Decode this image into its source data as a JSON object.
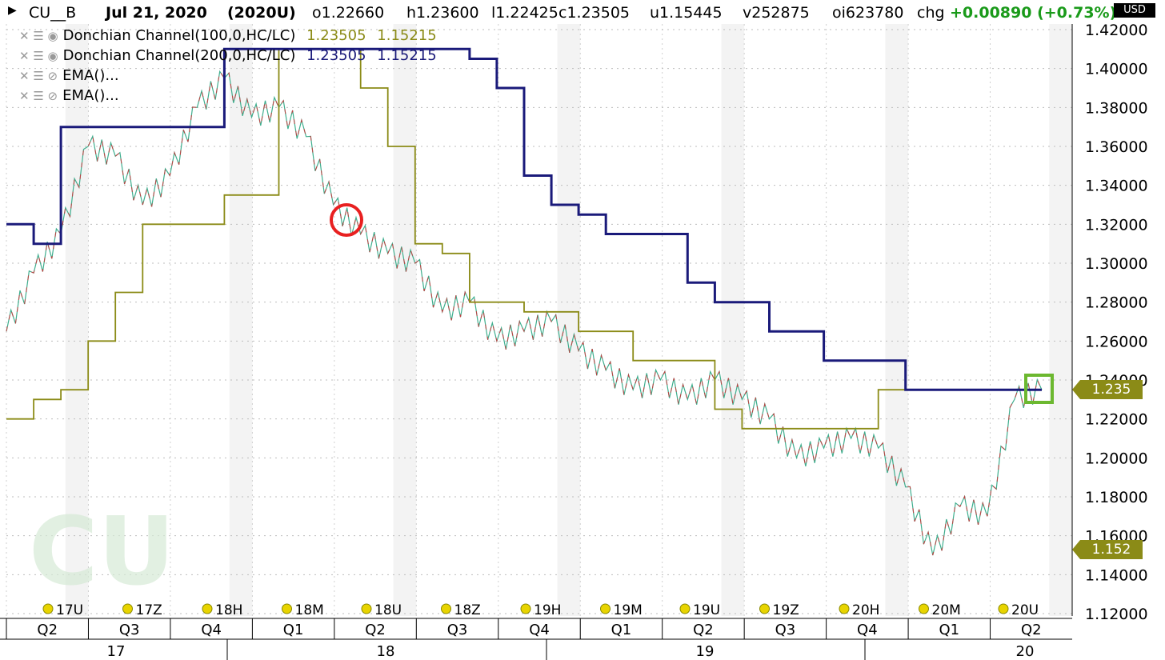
{
  "header": {
    "symbol": "CU__B",
    "date": "Jul 21, 2020",
    "contract": "(2020U)",
    "open": "o1.22660",
    "high": "h1.23600",
    "low": "l1.22425",
    "close": "c1.23505",
    "u": "u1.15445",
    "volume": "v252875",
    "open_interest": "oi623780",
    "chg_label": "chg",
    "chg_value": "+0.00890 (+0.73%)",
    "currency": "USD"
  },
  "legend": [
    {
      "name": "Donchian Channel(100,0,HC/LC)",
      "upper": "1.23505",
      "lower": "1.15215",
      "color": "#8b8b17"
    },
    {
      "name": "Donchian Channel(200,0,HC/LC)",
      "upper": "1.23505",
      "lower": "1.15215",
      "color": "#1a1a7a"
    },
    {
      "name": "EMA()...",
      "upper": "",
      "lower": "",
      "color": ""
    },
    {
      "name": "EMA()...",
      "upper": "",
      "lower": "",
      "color": ""
    }
  ],
  "price_tags": {
    "upper": "1.235",
    "lower": "1.152"
  },
  "watermark": "CU",
  "chart_data": {
    "type": "line",
    "ylim": [
      1.12,
      1.42
    ],
    "y_ticks": [
      "1.42000",
      "1.40000",
      "1.38000",
      "1.36000",
      "1.34000",
      "1.32000",
      "1.30000",
      "1.28000",
      "1.26000",
      "1.24000",
      "1.22000",
      "1.20000",
      "1.18000",
      "1.16000",
      "1.14000",
      "1.12000"
    ],
    "contract_markers": [
      "17U",
      "17Z",
      "18H",
      "18M",
      "18U",
      "18Z",
      "19H",
      "19M",
      "19U",
      "19Z",
      "20H",
      "20M",
      "20U"
    ],
    "quarters": [
      "Q2",
      "Q3",
      "Q4",
      "Q1",
      "Q2",
      "Q3",
      "Q4",
      "Q1",
      "Q2",
      "Q3",
      "Q4",
      "Q1",
      "Q2"
    ],
    "years": [
      "17",
      "18",
      "19",
      "20"
    ],
    "x": [
      "2017-05",
      "2017-06",
      "2017-07",
      "2017-08",
      "2017-09",
      "2017-10",
      "2017-11",
      "2017-12",
      "2018-01",
      "2018-02",
      "2018-03",
      "2018-04",
      "2018-05",
      "2018-06",
      "2018-07",
      "2018-08",
      "2018-09",
      "2018-10",
      "2018-11",
      "2018-12",
      "2019-01",
      "2019-02",
      "2019-03",
      "2019-04",
      "2019-05",
      "2019-06",
      "2019-07",
      "2019-08",
      "2019-09",
      "2019-10",
      "2019-11",
      "2019-12",
      "2020-01",
      "2020-02",
      "2020-03",
      "2020-04",
      "2020-05",
      "2020-06",
      "2020-07"
    ],
    "series": [
      {
        "name": "CU__B",
        "color": "#c04040",
        "values": [
          1.265,
          1.295,
          1.315,
          1.36,
          1.355,
          1.33,
          1.345,
          1.38,
          1.395,
          1.375,
          1.38,
          1.365,
          1.33,
          1.315,
          1.305,
          1.3,
          1.275,
          1.28,
          1.26,
          1.265,
          1.27,
          1.255,
          1.245,
          1.235,
          1.24,
          1.23,
          1.24,
          1.23,
          1.22,
          1.2,
          1.205,
          1.21,
          1.205,
          1.185,
          1.15,
          1.175,
          1.17,
          1.23,
          1.235
        ]
      },
      {
        "name": "Donchian Channel(100,0,HC/LC)",
        "color": "#8b8b17",
        "values": [
          1.22,
          1.23,
          1.235,
          1.26,
          1.285,
          1.32,
          1.32,
          1.32,
          1.335,
          1.335,
          1.41,
          1.41,
          1.41,
          1.39,
          1.36,
          1.31,
          1.305,
          1.28,
          1.28,
          1.275,
          1.275,
          1.265,
          1.265,
          1.25,
          1.25,
          1.25,
          1.225,
          1.215,
          1.215,
          1.215,
          1.215,
          1.215,
          1.235,
          1.235,
          1.235,
          1.235,
          1.235,
          1.235,
          1.235
        ]
      },
      {
        "name": "Donchian Channel(200,0,HC/LC)",
        "color": "#1a1a7a",
        "values": [
          1.32,
          1.31,
          1.37,
          1.37,
          1.37,
          1.37,
          1.37,
          1.37,
          1.41,
          1.41,
          1.41,
          1.41,
          1.41,
          1.41,
          1.41,
          1.41,
          1.41,
          1.405,
          1.39,
          1.345,
          1.33,
          1.325,
          1.315,
          1.315,
          1.315,
          1.29,
          1.28,
          1.28,
          1.265,
          1.265,
          1.25,
          1.25,
          1.25,
          1.235,
          1.235,
          1.235,
          1.235,
          1.235,
          1.235
        ]
      }
    ]
  }
}
